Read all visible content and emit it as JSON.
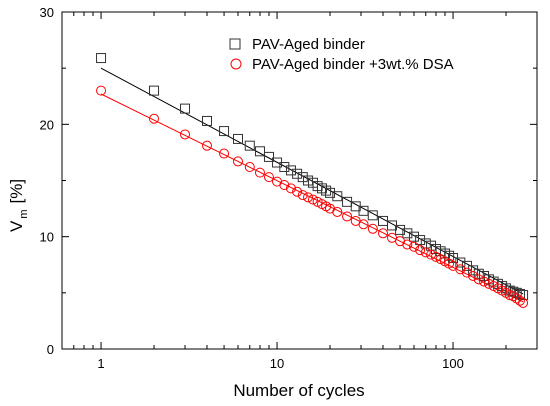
{
  "chart_data": {
    "type": "scatter",
    "xlabel": "Number of cycles",
    "ylabel_main": "V",
    "ylabel_sub": "m",
    "ylabel_unit": "[%]",
    "xscale": "log",
    "xlim": [
      0.6,
      300
    ],
    "ylim": [
      0,
      30
    ],
    "x_ticks": [
      1,
      10,
      100
    ],
    "x_tick_labels": [
      "1",
      "10",
      "100"
    ],
    "y_ticks": [
      0,
      10,
      20,
      30
    ],
    "y_tick_labels": [
      "0",
      "10",
      "20",
      "30"
    ],
    "grid": false,
    "legend_position": "top-right",
    "series": [
      {
        "name": "PAV-Aged binder",
        "marker": "square",
        "color": "#333333",
        "fit_color": "#000000",
        "fit": {
          "type": "log-linear",
          "y_at_1": 25.0,
          "y_at_250": 4.9
        },
        "points": [
          [
            1,
            25.9
          ],
          [
            2,
            23.0
          ],
          [
            3,
            21.4
          ],
          [
            4,
            20.3
          ],
          [
            5,
            19.4
          ],
          [
            6,
            18.7
          ],
          [
            7,
            18.1
          ],
          [
            8,
            17.6
          ],
          [
            9,
            17.1
          ],
          [
            10,
            16.6
          ],
          [
            11,
            16.2
          ],
          [
            12,
            15.9
          ],
          [
            13,
            15.6
          ],
          [
            14,
            15.3
          ],
          [
            15,
            15.0
          ],
          [
            16,
            14.8
          ],
          [
            17,
            14.5
          ],
          [
            18,
            14.3
          ],
          [
            19,
            14.1
          ],
          [
            20,
            13.9
          ],
          [
            22,
            13.6
          ],
          [
            25,
            13.1
          ],
          [
            28,
            12.7
          ],
          [
            31,
            12.3
          ],
          [
            35,
            11.9
          ],
          [
            40,
            11.4
          ],
          [
            45,
            11.0
          ],
          [
            50,
            10.6
          ],
          [
            55,
            10.3
          ],
          [
            60,
            10.0
          ],
          [
            65,
            9.7
          ],
          [
            70,
            9.4
          ],
          [
            75,
            9.2
          ],
          [
            80,
            8.9
          ],
          [
            85,
            8.7
          ],
          [
            90,
            8.5
          ],
          [
            95,
            8.3
          ],
          [
            100,
            8.1
          ],
          [
            110,
            7.7
          ],
          [
            120,
            7.4
          ],
          [
            130,
            7.0
          ],
          [
            140,
            6.7
          ],
          [
            150,
            6.5
          ],
          [
            160,
            6.2
          ],
          [
            170,
            6.0
          ],
          [
            180,
            5.8
          ],
          [
            190,
            5.6
          ],
          [
            200,
            5.4
          ],
          [
            210,
            5.2
          ],
          [
            220,
            5.1
          ],
          [
            230,
            5.0
          ],
          [
            240,
            4.9
          ],
          [
            250,
            4.8
          ]
        ]
      },
      {
        "name": "PAV-Aged binder +3wt.% DSA",
        "marker": "circle",
        "color": "#ff0000",
        "fit_color": "#ff0000",
        "fit": {
          "type": "log-linear",
          "y_at_1": 22.7,
          "y_at_250": 4.2
        },
        "points": [
          [
            1,
            23.0
          ],
          [
            2,
            20.5
          ],
          [
            3,
            19.1
          ],
          [
            4,
            18.1
          ],
          [
            5,
            17.4
          ],
          [
            6,
            16.7
          ],
          [
            7,
            16.2
          ],
          [
            8,
            15.7
          ],
          [
            9,
            15.3
          ],
          [
            10,
            14.9
          ],
          [
            11,
            14.6
          ],
          [
            12,
            14.3
          ],
          [
            13,
            14.0
          ],
          [
            14,
            13.7
          ],
          [
            15,
            13.5
          ],
          [
            16,
            13.3
          ],
          [
            17,
            13.1
          ],
          [
            18,
            12.9
          ],
          [
            19,
            12.7
          ],
          [
            20,
            12.5
          ],
          [
            22,
            12.2
          ],
          [
            25,
            11.8
          ],
          [
            28,
            11.4
          ],
          [
            31,
            11.1
          ],
          [
            35,
            10.7
          ],
          [
            40,
            10.3
          ],
          [
            45,
            9.9
          ],
          [
            50,
            9.6
          ],
          [
            55,
            9.3
          ],
          [
            60,
            9.1
          ],
          [
            65,
            8.8
          ],
          [
            70,
            8.6
          ],
          [
            75,
            8.4
          ],
          [
            80,
            8.2
          ],
          [
            85,
            8.0
          ],
          [
            90,
            7.8
          ],
          [
            95,
            7.6
          ],
          [
            100,
            7.4
          ],
          [
            110,
            7.1
          ],
          [
            120,
            6.8
          ],
          [
            130,
            6.5
          ],
          [
            140,
            6.2
          ],
          [
            150,
            6.0
          ],
          [
            160,
            5.8
          ],
          [
            170,
            5.6
          ],
          [
            180,
            5.4
          ],
          [
            190,
            5.2
          ],
          [
            200,
            5.0
          ],
          [
            210,
            4.8
          ],
          [
            220,
            4.7
          ],
          [
            230,
            4.5
          ],
          [
            240,
            4.3
          ],
          [
            250,
            4.1
          ]
        ]
      }
    ]
  }
}
